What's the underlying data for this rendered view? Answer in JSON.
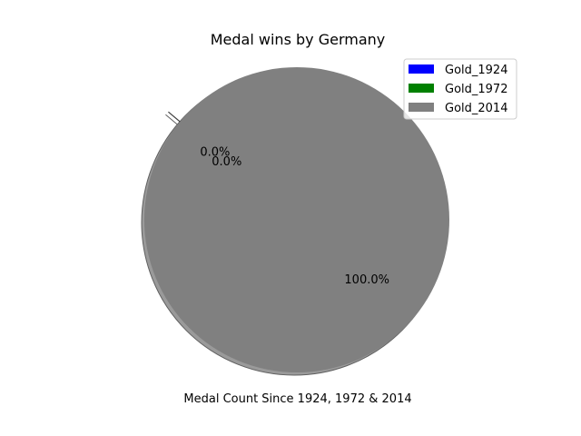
{
  "chart_data": {
    "type": "pie",
    "title": "Medal wins by Germany",
    "xlabel": "Medal Count Since 1924, 1972 & 2014",
    "ylabel": "",
    "legend_position": "top-right",
    "shadow": true,
    "explode": "first-slice",
    "slices": [
      {
        "label": "Gold_1924",
        "value": 0,
        "pct_label": "0.0%",
        "color": "#0000ff"
      },
      {
        "label": "Gold_1972",
        "value": 0,
        "pct_label": "0.0%",
        "color": "#008000"
      },
      {
        "label": "Gold_2014",
        "value": 100,
        "pct_label": "100.0%",
        "color": "#808080"
      }
    ]
  }
}
